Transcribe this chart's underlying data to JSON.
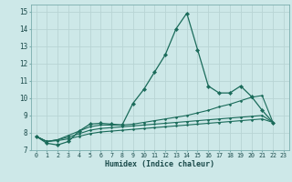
{
  "title": "",
  "xlabel": "Humidex (Indice chaleur)",
  "ylabel": "",
  "background_color": "#cde8e8",
  "grid_color": "#b8d4d4",
  "line_color": "#1a6b5a",
  "xlim": [
    -0.5,
    23.5
  ],
  "ylim": [
    7,
    15.4
  ],
  "xticks": [
    0,
    1,
    2,
    3,
    4,
    5,
    6,
    7,
    8,
    9,
    10,
    11,
    12,
    13,
    14,
    15,
    16,
    17,
    18,
    19,
    20,
    21,
    22,
    23
  ],
  "yticks": [
    7,
    8,
    9,
    10,
    11,
    12,
    13,
    14,
    15
  ],
  "series": [
    [
      7.8,
      7.4,
      7.3,
      7.5,
      8.1,
      8.5,
      8.55,
      8.5,
      8.45,
      9.7,
      10.5,
      11.5,
      12.5,
      14.0,
      14.9,
      12.8,
      10.7,
      10.3,
      10.3,
      10.7,
      10.1,
      9.3,
      8.6
    ],
    [
      7.8,
      7.5,
      7.6,
      7.85,
      8.1,
      8.35,
      8.45,
      8.45,
      8.45,
      8.5,
      8.6,
      8.7,
      8.8,
      8.9,
      9.0,
      9.15,
      9.3,
      9.5,
      9.65,
      9.85,
      10.05,
      10.15,
      8.6
    ],
    [
      7.8,
      7.5,
      7.6,
      7.75,
      7.95,
      8.15,
      8.25,
      8.3,
      8.35,
      8.4,
      8.45,
      8.5,
      8.55,
      8.6,
      8.65,
      8.7,
      8.75,
      8.8,
      8.85,
      8.9,
      8.95,
      9.0,
      8.6
    ],
    [
      7.8,
      7.5,
      7.55,
      7.65,
      7.8,
      7.95,
      8.05,
      8.1,
      8.15,
      8.2,
      8.25,
      8.3,
      8.35,
      8.4,
      8.45,
      8.5,
      8.55,
      8.6,
      8.65,
      8.7,
      8.75,
      8.8,
      8.6
    ]
  ]
}
